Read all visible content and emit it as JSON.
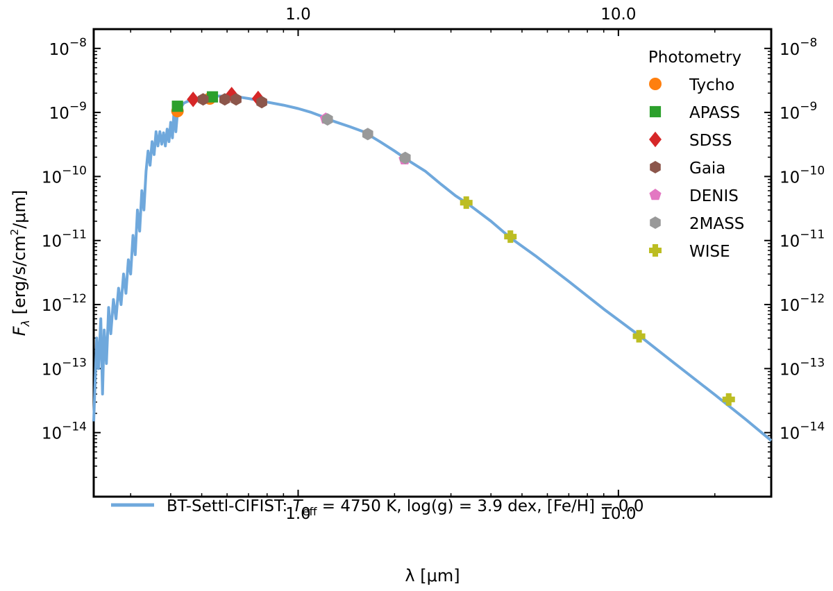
{
  "chart_data": {
    "type": "line+scatter",
    "xscale": "log",
    "yscale": "log",
    "xlim": [
      0.23,
      30
    ],
    "ylim": [
      1e-15,
      2e-08
    ],
    "xlabel": "λ [μm]",
    "ylabel": "F_λ [erg/s/cm²/μm]",
    "ylabel_parts": {
      "sym": "F",
      "sub": "λ",
      "unit": " [erg/s/cm",
      "sup": "2",
      "unit_end": "/μm]"
    },
    "xticks": [
      {
        "value": 1.0,
        "label": "1.0"
      },
      {
        "value": 10.0,
        "label": "10.0"
      }
    ],
    "yticks": [
      {
        "value": 1e-14,
        "base": "10",
        "exp": "−14"
      },
      {
        "value": 1e-13,
        "base": "10",
        "exp": "−13"
      },
      {
        "value": 1e-12,
        "base": "10",
        "exp": "−12"
      },
      {
        "value": 1e-11,
        "base": "10",
        "exp": "−11"
      },
      {
        "value": 1e-10,
        "base": "10",
        "exp": "−10"
      },
      {
        "value": 1e-09,
        "base": "10",
        "exp": "−9"
      },
      {
        "value": 1e-08,
        "base": "10",
        "exp": "−8"
      }
    ],
    "legend_title": "Photometry",
    "legend_location": "upper right",
    "model": {
      "name": "BT-Settl-CIFIST",
      "label_text": "BT-Settl-CIFIST: ",
      "teff_sym": "T",
      "teff_sub": "eff",
      "teff_value": " = 4750 K, ",
      "logg_text": "log(g) = 3.9 dex, ",
      "feh_text": "[Fe/H] = 0.0",
      "color": "#6fa8dc",
      "legend_location": "lower left",
      "points": [
        [
          0.23,
          1.5e-14
        ],
        [
          0.235,
          3e-13
        ],
        [
          0.238,
          1e-13
        ],
        [
          0.242,
          6e-13
        ],
        [
          0.245,
          4e-14
        ],
        [
          0.248,
          4e-13
        ],
        [
          0.252,
          1.2e-13
        ],
        [
          0.256,
          9e-13
        ],
        [
          0.26,
          3.5e-13
        ],
        [
          0.265,
          1.2e-12
        ],
        [
          0.27,
          6e-13
        ],
        [
          0.275,
          1.8e-12
        ],
        [
          0.28,
          1e-12
        ],
        [
          0.285,
          3e-12
        ],
        [
          0.29,
          1.5e-12
        ],
        [
          0.295,
          5e-12
        ],
        [
          0.3,
          3e-12
        ],
        [
          0.305,
          1.2e-11
        ],
        [
          0.31,
          6e-12
        ],
        [
          0.315,
          3e-11
        ],
        [
          0.32,
          1.4e-11
        ],
        [
          0.325,
          6e-11
        ],
        [
          0.33,
          3e-11
        ],
        [
          0.335,
          1.2e-10
        ],
        [
          0.34,
          2.5e-10
        ],
        [
          0.345,
          1.5e-10
        ],
        [
          0.35,
          3.5e-10
        ],
        [
          0.355,
          2.2e-10
        ],
        [
          0.36,
          5e-10
        ],
        [
          0.365,
          3e-10
        ],
        [
          0.37,
          5e-10
        ],
        [
          0.375,
          3.2e-10
        ],
        [
          0.38,
          4.8e-10
        ],
        [
          0.385,
          3e-10
        ],
        [
          0.39,
          5.5e-10
        ],
        [
          0.395,
          3.5e-10
        ],
        [
          0.4,
          7e-10
        ],
        [
          0.405,
          4e-10
        ],
        [
          0.41,
          1.1e-09
        ],
        [
          0.415,
          5e-10
        ],
        [
          0.42,
          1e-09
        ],
        [
          0.43,
          1.2e-09
        ],
        [
          0.44,
          1.4e-09
        ],
        [
          0.46,
          1.55e-09
        ],
        [
          0.48,
          1.65e-09
        ],
        [
          0.5,
          1.72e-09
        ],
        [
          0.53,
          1.78e-09
        ],
        [
          0.56,
          1.8e-09
        ],
        [
          0.6,
          1.8e-09
        ],
        [
          0.65,
          1.75e-09
        ],
        [
          0.7,
          1.65e-09
        ],
        [
          0.75,
          1.55e-09
        ],
        [
          0.8,
          1.45e-09
        ],
        [
          0.9,
          1.3e-09
        ],
        [
          1.0,
          1.15e-09
        ],
        [
          1.1,
          1e-09
        ],
        [
          1.2,
          8.5e-10
        ],
        [
          1.3,
          7.2e-10
        ],
        [
          1.45,
          6e-10
        ],
        [
          1.6,
          5e-10
        ],
        [
          1.8,
          3.5e-10
        ],
        [
          2.0,
          2.5e-10
        ],
        [
          2.2,
          1.8e-10
        ],
        [
          2.5,
          1.2e-10
        ],
        [
          2.8,
          7.5e-11
        ],
        [
          3.1,
          5e-11
        ],
        [
          3.4,
          3.7e-11
        ],
        [
          4.0,
          2e-11
        ],
        [
          4.6,
          1.1e-11
        ],
        [
          5.5,
          5.8e-12
        ],
        [
          7.0,
          2.3e-12
        ],
        [
          9.0,
          8.5e-13
        ],
        [
          11.6,
          3.3e-13
        ],
        [
          15.0,
          1.2e-13
        ],
        [
          20.0,
          3.9e-14
        ],
        [
          25.0,
          1.6e-14
        ],
        [
          30.0,
          7.5e-15
        ]
      ]
    },
    "series": [
      {
        "name": "Tycho",
        "marker": "circle",
        "color": "#ff7f0e",
        "points": [
          [
            0.42,
            1.05e-09
          ],
          [
            0.53,
            1.65e-09
          ]
        ]
      },
      {
        "name": "APASS",
        "marker": "square",
        "color": "#2ca02c",
        "points": [
          [
            0.42,
            1.25e-09
          ],
          [
            0.54,
            1.75e-09
          ]
        ]
      },
      {
        "name": "SDSS",
        "marker": "diamond",
        "color": "#d62728",
        "points": [
          [
            0.47,
            1.6e-09
          ],
          [
            0.62,
            1.9e-09
          ],
          [
            0.75,
            1.65e-09
          ]
        ]
      },
      {
        "name": "Gaia",
        "marker": "hexagon",
        "color": "#8c564b",
        "points": [
          [
            0.505,
            1.6e-09
          ],
          [
            0.59,
            1.6e-09
          ],
          [
            0.64,
            1.6e-09
          ],
          [
            0.77,
            1.45e-09
          ]
        ]
      },
      {
        "name": "DENIS",
        "marker": "pentagon",
        "color": "#e377c2",
        "points": [
          [
            1.22,
            8e-10
          ],
          [
            2.15,
            1.85e-10
          ]
        ]
      },
      {
        "name": "2MASS",
        "marker": "hexagon",
        "color": "#999999",
        "points": [
          [
            1.235,
            7.8e-10
          ],
          [
            1.65,
            4.6e-10
          ],
          [
            2.16,
            1.95e-10
          ]
        ]
      },
      {
        "name": "WISE",
        "marker": "plus",
        "color": "#bcbd22",
        "points": [
          [
            3.35,
            3.9e-11
          ],
          [
            4.6,
            1.15e-11
          ],
          [
            11.6,
            3.2e-13
          ],
          [
            22.1,
            3.3e-14
          ]
        ]
      }
    ]
  }
}
